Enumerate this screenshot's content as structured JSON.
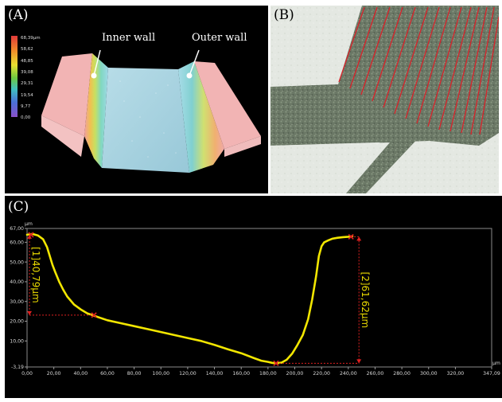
{
  "panel_a": {
    "label": "(A)",
    "scale_ticks": [
      "68,39µm",
      "58,62",
      "48,85",
      "39,08",
      "29,31",
      "19,54",
      "9,77",
      "0,00"
    ],
    "inner_wall_label": "Inner wall",
    "outer_wall_label": "Outer wall"
  },
  "panel_b": {
    "label": "(B)"
  },
  "panel_c": {
    "label": "(C)",
    "annotation_1": "[1]40,79µm",
    "annotation_2": "[2]61,62µm"
  },
  "chart_data": {
    "type": "line",
    "xlabel": "µm",
    "ylabel": "µm",
    "xlim": [
      0,
      347.09
    ],
    "ylim": [
      -3.19,
      67.0
    ],
    "x_ticks": [
      "0,00",
      "20,00",
      "40,00",
      "60,00",
      "80,00",
      "100,00",
      "120,00",
      "140,00",
      "160,00",
      "180,00",
      "200,00",
      "220,00",
      "240,00",
      "260,00",
      "280,00",
      "300,00",
      "320,00",
      "347,09"
    ],
    "y_ticks": [
      "67,00",
      "60,00",
      "50,00",
      "40,00",
      "30,00",
      "20,00",
      "10,00",
      "-3,19"
    ],
    "series": [
      {
        "color": "#f2e600",
        "x": [
          0,
          4,
          8,
          12,
          15,
          17,
          19,
          21,
          24,
          27,
          30,
          35,
          40,
          45,
          50,
          60,
          70,
          80,
          90,
          100,
          110,
          120,
          130,
          140,
          150,
          160,
          170,
          175,
          180,
          183,
          186,
          190,
          194,
          198,
          202,
          206,
          210,
          213,
          216,
          218,
          220,
          222,
          225,
          228,
          232,
          236,
          240,
          243
        ],
        "y": [
          63.8,
          64.2,
          63.5,
          61.5,
          57.5,
          53,
          48.5,
          45,
          40,
          36,
          32.5,
          28.5,
          26,
          24,
          22.8,
          20.5,
          19,
          17.5,
          16,
          14.5,
          13,
          11.5,
          10,
          8,
          5.8,
          3.8,
          1.2,
          0,
          -0.6,
          -1.1,
          -1.3,
          -1,
          0.5,
          3.5,
          8,
          13,
          21,
          31,
          43,
          53,
          58,
          60,
          61,
          61.8,
          62.3,
          62.6,
          62.8,
          63
        ]
      }
    ],
    "markers": [
      {
        "x": 3,
        "y": 63.8
      },
      {
        "x": 50,
        "y": 23.1
      },
      {
        "x": 186,
        "y": -1.3
      },
      {
        "x": 242,
        "y": 62.8
      }
    ]
  }
}
